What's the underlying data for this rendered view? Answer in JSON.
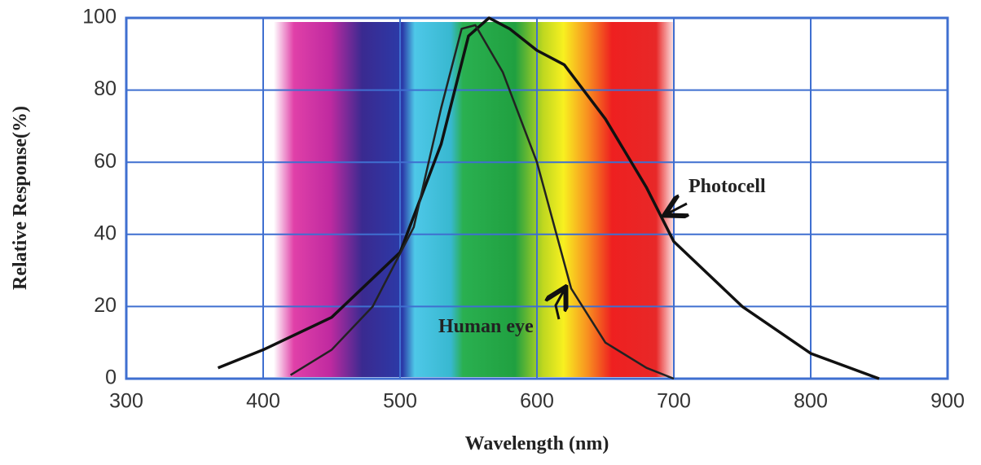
{
  "chart_data": {
    "type": "line",
    "xlabel": "Wavelength  (nm)",
    "ylabel": "Relative Response(%)",
    "xlim": [
      300,
      900
    ],
    "xticks": [
      300,
      400,
      500,
      600,
      700,
      800,
      900
    ],
    "ylim": [
      0,
      100
    ],
    "yticks": [
      0,
      20,
      40,
      60,
      80,
      100
    ],
    "grid": true,
    "series": [
      {
        "name": "Photocell",
        "color": "#111111",
        "x": [
          367,
          400,
          450,
          500,
          530,
          550,
          565,
          580,
          600,
          620,
          650,
          680,
          700,
          750,
          800,
          850
        ],
        "values": [
          3,
          8,
          17,
          35,
          65,
          95,
          100,
          97,
          91,
          87,
          72,
          53,
          38,
          20,
          7,
          0
        ]
      },
      {
        "name": "Human eye",
        "color": "#222222",
        "x": [
          420,
          450,
          480,
          510,
          530,
          545,
          555,
          575,
          600,
          625,
          650,
          680,
          700
        ],
        "values": [
          1,
          8,
          20,
          42,
          75,
          97,
          98,
          85,
          60,
          25,
          10,
          3,
          0
        ]
      }
    ],
    "annotations": [
      {
        "text": "Photocell"
      },
      {
        "text": "Human  eye"
      }
    ]
  }
}
